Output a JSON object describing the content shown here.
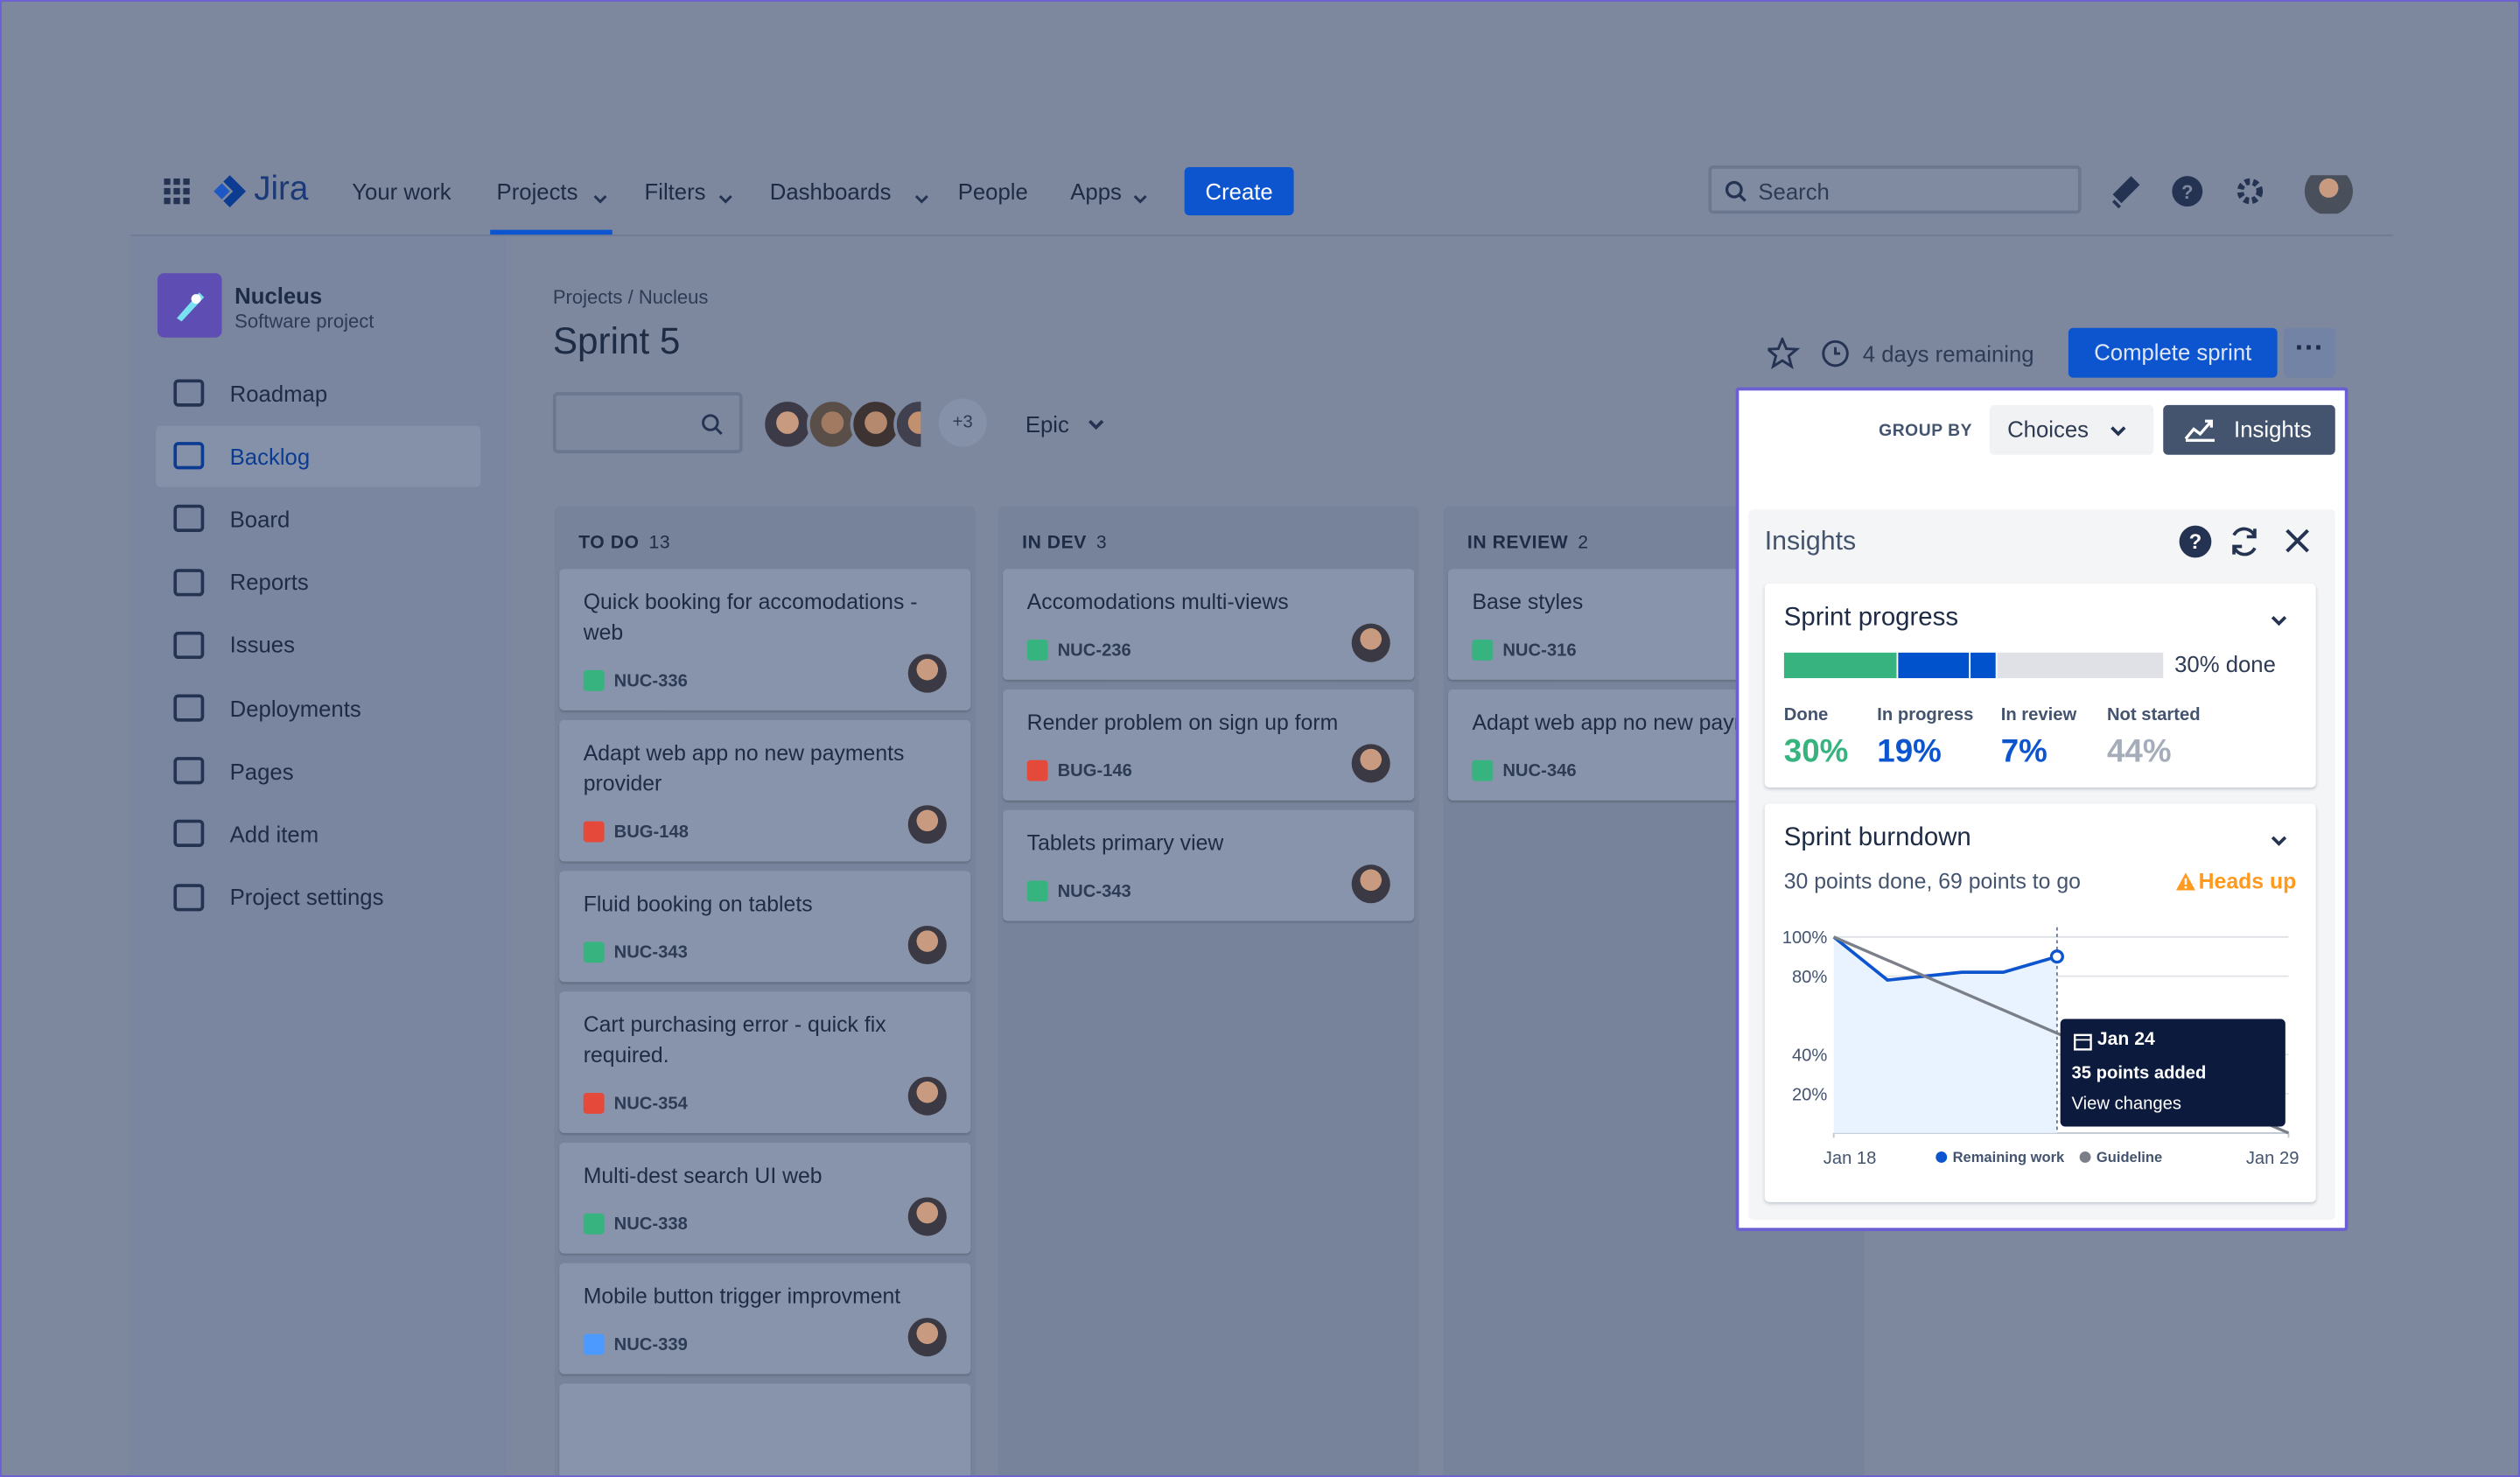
{
  "nav": {
    "items": [
      "Your work",
      "Projects",
      "Filters",
      "Dashboards",
      "People",
      "Apps"
    ],
    "logo": "Jira",
    "create": "Create",
    "search": "Search"
  },
  "project": {
    "name": "Nucleus",
    "subtitle": "Software project"
  },
  "sidebar": [
    "Roadmap",
    "Backlog",
    "Board",
    "Reports",
    "Issues",
    "Deployments",
    "Pages",
    "Add item",
    "Project settings"
  ],
  "header": {
    "breadcrumb": "Projects / Nucleus",
    "title": "Sprint 5",
    "extra_avatars": "+3",
    "epic": "Epic",
    "remaining": "4 days remaining",
    "complete": "Complete sprint"
  },
  "columns": [
    {
      "name": "TO DO",
      "count": 13,
      "cards": [
        {
          "title": "Quick booking for accomodations - web",
          "key": "NUC-336",
          "type": "story"
        },
        {
          "title": "Adapt web app no new payments provider",
          "key": "BUG-148",
          "type": "bug"
        },
        {
          "title": "Fluid booking on tablets",
          "key": "NUC-343",
          "type": "story"
        },
        {
          "title": "Cart purchasing error - quick fix required.",
          "key": "NUC-354",
          "type": "bug"
        },
        {
          "title": "Multi-dest search UI web",
          "key": "NUC-338",
          "type": "story"
        },
        {
          "title": "Mobile button trigger improvment",
          "key": "NUC-339",
          "type": "subtask"
        }
      ]
    },
    {
      "name": "IN DEV",
      "count": 3,
      "cards": [
        {
          "title": "Accomodations multi-views",
          "key": "NUC-236",
          "type": "story"
        },
        {
          "title": "Render problem on sign up form",
          "key": "BUG-146",
          "type": "bug"
        },
        {
          "title": "Tablets primary view",
          "key": "NUC-343",
          "type": "story"
        }
      ]
    },
    {
      "name": "IN REVIEW",
      "count": 2,
      "cards": [
        {
          "title": "Base styles",
          "key": "NUC-316",
          "type": "story"
        },
        {
          "title": "Adapt web app no new payments provider",
          "key": "NUC-346",
          "type": "improvement"
        }
      ]
    }
  ],
  "toolbar": {
    "group_by": "GROUP BY",
    "choices": "Choices",
    "insights": "Insights"
  },
  "insights": {
    "title": "Insights"
  },
  "sprint_progress": {
    "title": "Sprint progress",
    "done_label": "30% done",
    "stats": [
      {
        "label": "Done",
        "value": 30,
        "value_label": "30%",
        "color": "#36b37e"
      },
      {
        "label": "In progress",
        "value": 19,
        "value_label": "19%",
        "color": "#0052cc"
      },
      {
        "label": "In review",
        "value": 7,
        "value_label": "7%",
        "color": "#0052cc"
      },
      {
        "label": "Not started",
        "value": 44,
        "value_label": "44%",
        "color": "#dfe1e6"
      }
    ]
  },
  "burndown": {
    "title": "Sprint burndown",
    "summary": "30 points done, 69 points to go",
    "alert": "Heads up",
    "tooltip": {
      "date": "Jan 24",
      "text": "35 points added",
      "link": "View changes"
    }
  },
  "chart_data": {
    "type": "line",
    "xlim": [
      0,
      11
    ],
    "ylim": [
      0,
      100
    ],
    "xticks": [
      {
        "value": 0,
        "label": "Jan 18"
      },
      {
        "value": 11,
        "label": "Jan 29"
      }
    ],
    "yticks": [
      {
        "value": 100,
        "label": "100%"
      },
      {
        "value": 80,
        "label": "80%"
      },
      {
        "value": 40,
        "label": "40%"
      },
      {
        "value": 20,
        "label": "20%"
      }
    ],
    "grid": true,
    "series": [
      {
        "name": "Remaining work",
        "color": "#0c55cf",
        "x": [
          0,
          1.3,
          2.2,
          3.1,
          4.1,
          5.4
        ],
        "values": [
          100,
          78,
          80,
          82,
          82,
          90
        ],
        "area": true
      },
      {
        "name": "Guideline",
        "color": "#7a7f88",
        "x": [
          0,
          11
        ],
        "values": [
          100,
          0
        ]
      }
    ]
  }
}
